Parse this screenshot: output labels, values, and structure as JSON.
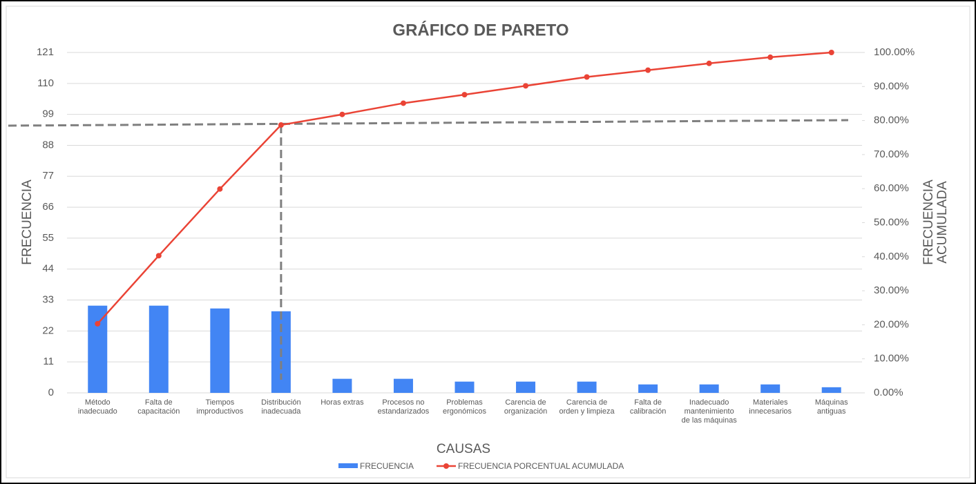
{
  "chart_data": {
    "type": "pareto",
    "title": "GRÁFICO DE PARETO",
    "x_label": "CAUSAS",
    "y_label": "FRECUENCIA",
    "y2_label": "FRECUENCIA\nACUMULADA",
    "categories": [
      "Método\ninadecuado",
      "Falta de\ncapacitación",
      "Tiempos\nimproductivos",
      "Distribución\ninadecuada",
      "Horas extras",
      "Procesos no\nestandarizados",
      "Problemas\nergonómicos",
      "Carencia de\norganización",
      "Carencia de\norden y limpieza",
      "Falta de\ncalibración",
      "Inadecuado\nmantenimiento\nde las máquinas",
      "Materiales\ninnecesarios",
      "Máquinas\nantiguas"
    ],
    "series": [
      {
        "name": "FRECUENCIA",
        "color": "#4285f4",
        "values": [
          31,
          31,
          30,
          29,
          5,
          5,
          4,
          4,
          4,
          3,
          3,
          3,
          2
        ]
      },
      {
        "name": "FRECUENCIA PORCENTUAL ACUMULADA",
        "color": "#ea4335",
        "axis": "y2",
        "values": [
          20.3,
          40.3,
          59.9,
          78.7,
          81.8,
          85.1,
          87.6,
          90.2,
          92.8,
          94.8,
          96.8,
          98.6,
          100
        ]
      }
    ],
    "ylim": [
      0,
      121
    ],
    "yticks": [
      0,
      11,
      22,
      33,
      44,
      55,
      66,
      77,
      88,
      99,
      110,
      121
    ],
    "y2lim": [
      0,
      100
    ],
    "y2ticks": [
      {
        "value": 0,
        "label": "0.00%"
      },
      {
        "value": 10,
        "label": "10.00%"
      },
      {
        "value": 20,
        "label": "20.00%"
      },
      {
        "value": 30,
        "label": "30.00%"
      },
      {
        "value": 40,
        "label": "40.00%"
      },
      {
        "value": 50,
        "label": "50.00%"
      },
      {
        "value": 60,
        "label": "60.00%"
      },
      {
        "value": 70,
        "label": "70.00%"
      },
      {
        "value": 80,
        "label": "80.00%"
      },
      {
        "value": 90,
        "label": "90.00%"
      },
      {
        "value": 100,
        "label": "100.00%"
      }
    ],
    "grid": true
  }
}
